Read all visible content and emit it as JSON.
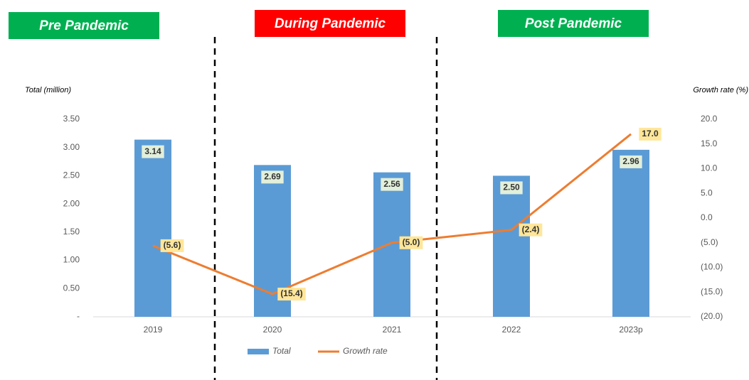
{
  "phases": [
    {
      "label": "Pre Pandemic",
      "color": "#00b050"
    },
    {
      "label": "During Pandemic",
      "color": "#ff0000"
    },
    {
      "label": "Post Pandemic",
      "color": "#00b050"
    }
  ],
  "chart_data": {
    "type": "bar",
    "y_label": "Total (million)",
    "y2_label": "Growth rate (%)",
    "categories": [
      "2019",
      "2020",
      "2021",
      "2022",
      "2023p"
    ],
    "series": [
      {
        "name": "Total",
        "type": "bar",
        "color": "#5b9bd5",
        "values": [
          3.14,
          2.69,
          2.56,
          2.5,
          2.96
        ],
        "value_labels": [
          "3.14",
          "2.69",
          "2.56",
          "2.50",
          "2.96"
        ]
      },
      {
        "name": "Growth rate",
        "type": "line",
        "axis": "y2",
        "color": "#ed7d31",
        "values": [
          -5.6,
          -15.4,
          -5.0,
          -2.4,
          17.0
        ],
        "value_labels": [
          "(5.6)",
          "(15.4)",
          "(5.0)",
          "(2.4)",
          "17.0"
        ]
      }
    ],
    "ylim": [
      0,
      3.5
    ],
    "yticks": [
      {
        "value": 0,
        "label": "-"
      },
      {
        "value": 0.5,
        "label": "0.50"
      },
      {
        "value": 1,
        "label": "1.00"
      },
      {
        "value": 1.5,
        "label": "1.50"
      },
      {
        "value": 2,
        "label": "2.00"
      },
      {
        "value": 2.5,
        "label": "2.50"
      },
      {
        "value": 3,
        "label": "3.00"
      },
      {
        "value": 3.5,
        "label": "3.50"
      }
    ],
    "y2lim": [
      -20,
      20
    ],
    "y2ticks": [
      {
        "value": -20,
        "label": "(20.0)"
      },
      {
        "value": -15,
        "label": "(15.0)"
      },
      {
        "value": -10,
        "label": "(10.0)"
      },
      {
        "value": -5,
        "label": "(5.0)"
      },
      {
        "value": 0,
        "label": "0.0"
      },
      {
        "value": 5,
        "label": "5.0"
      },
      {
        "value": 10,
        "label": "10.0"
      },
      {
        "value": 15,
        "label": "15.0"
      },
      {
        "value": 20,
        "label": "20.0"
      }
    ]
  }
}
